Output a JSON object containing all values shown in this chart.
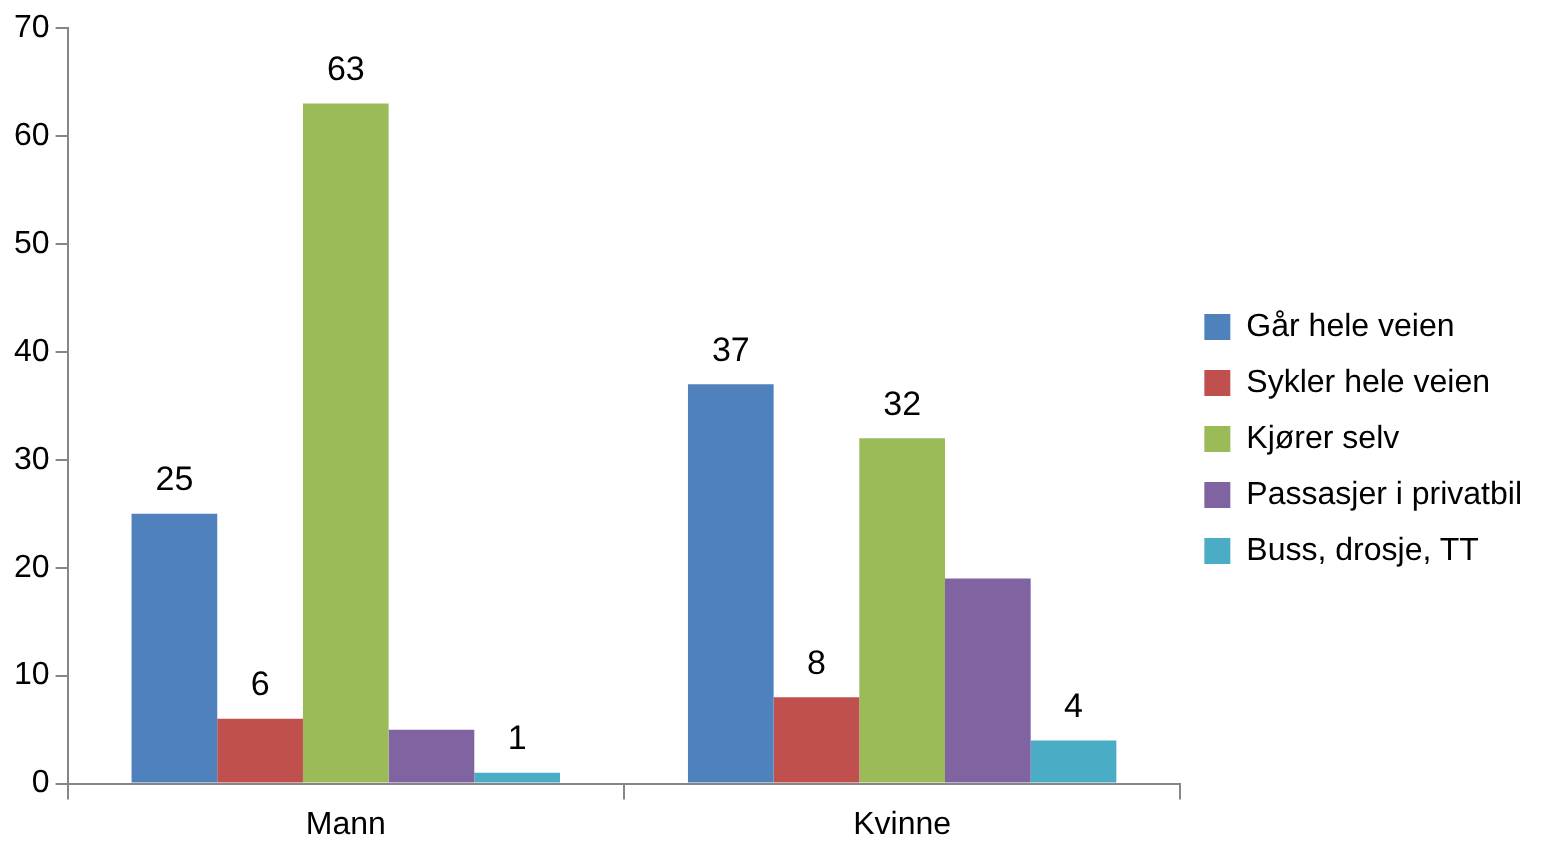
{
  "chart_data": {
    "type": "bar",
    "categories": [
      "Mann",
      "Kvinne"
    ],
    "series": [
      {
        "name": "Går hele veien",
        "color": "#4f81bd",
        "values": [
          25,
          37
        ],
        "value_labels": [
          "25",
          "37"
        ]
      },
      {
        "name": "Sykler hele veien",
        "color": "#c0504d",
        "values": [
          6,
          8
        ],
        "value_labels": [
          "6",
          "8"
        ]
      },
      {
        "name": "Kjører selv",
        "color": "#9bbb59",
        "values": [
          63,
          32
        ],
        "value_labels": [
          "63",
          "32"
        ]
      },
      {
        "name": "Passasjer i privatbil",
        "color": "#8064a2",
        "values": [
          5,
          19
        ],
        "value_labels": [
          null,
          null
        ]
      },
      {
        "name": "Buss, drosje, TT",
        "color": "#4bacc6",
        "values": [
          1,
          4
        ],
        "value_labels": [
          "1",
          "4"
        ]
      }
    ],
    "ylim": [
      0,
      70
    ],
    "yticks": [
      0,
      10,
      20,
      30,
      40,
      50,
      60,
      70
    ],
    "grid": false,
    "legend": "right"
  }
}
